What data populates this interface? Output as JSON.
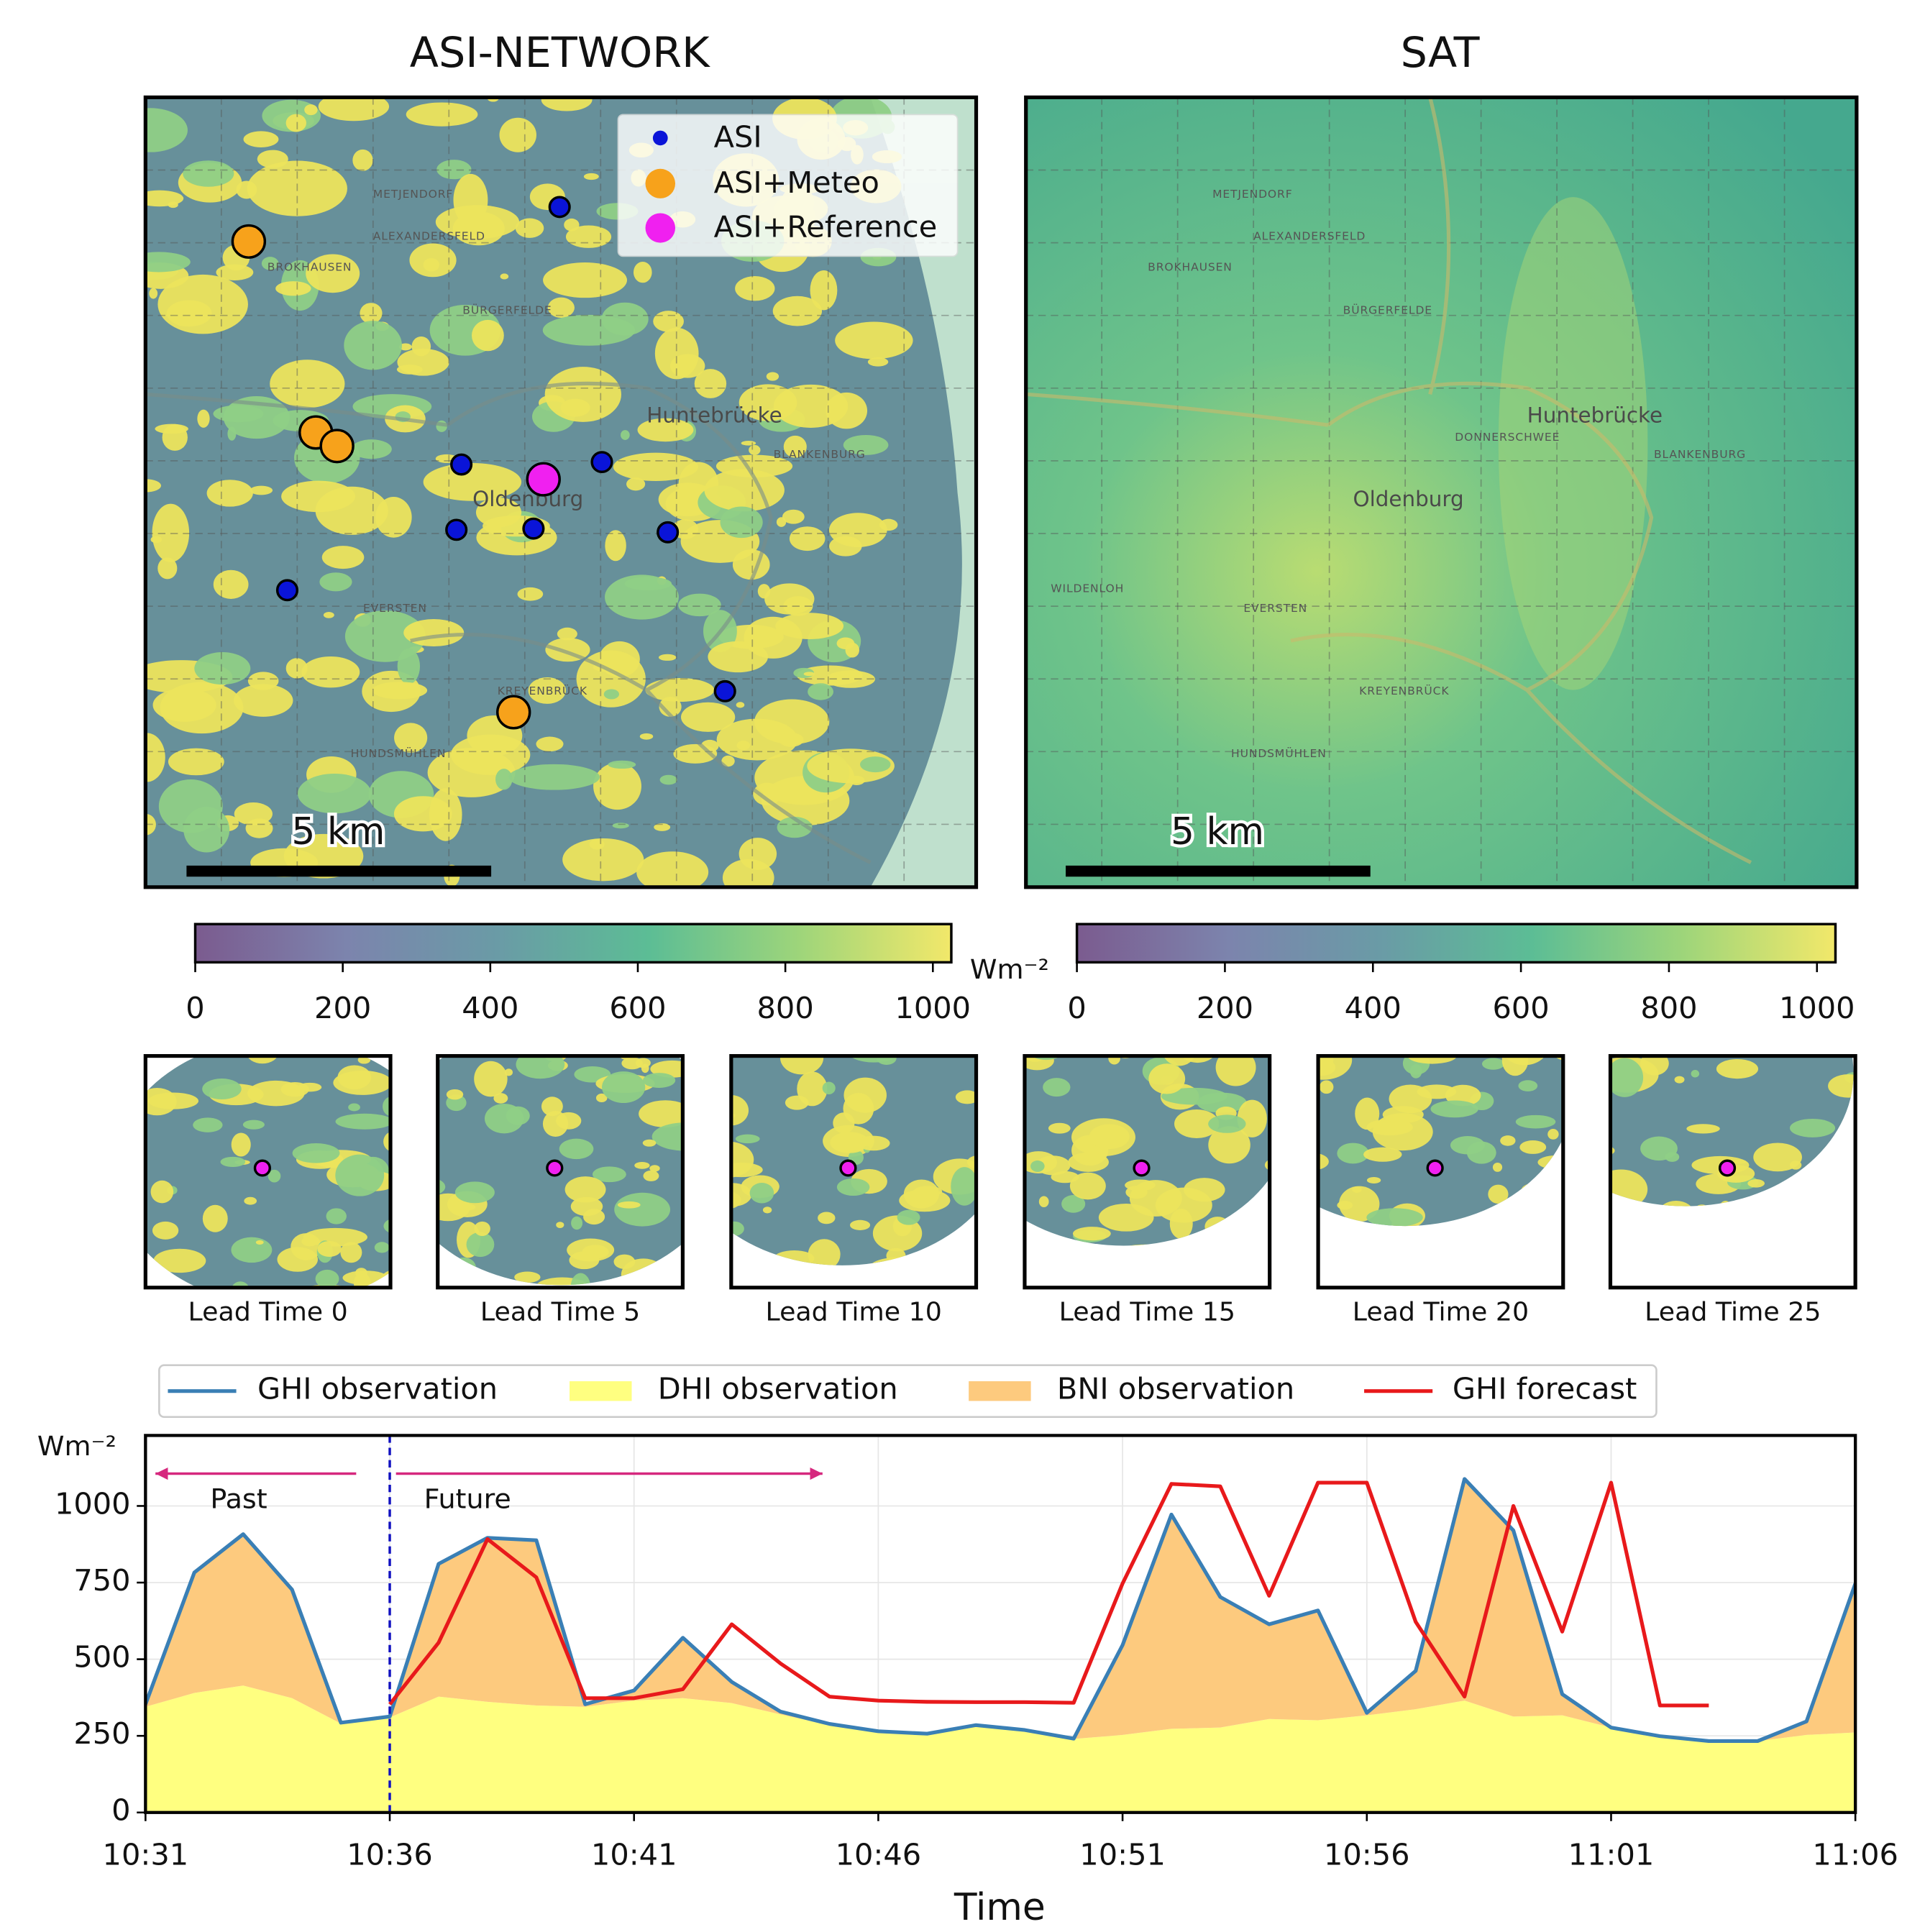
{
  "maps": [
    {
      "title": "ASI-NETWORK",
      "scale_label": "5 km",
      "legend": [
        "ASI",
        "ASI+Meteo",
        "ASI+Reference"
      ],
      "places": [
        "METJENDORF",
        "ALEXANDERSFELD",
        "BROKHAUSEN",
        "BÜRGERFELDE",
        "Oldenburg",
        "EVERSTEN",
        "Huntebrücke",
        "BLANKENBURG",
        "HUNDSMÜHLEN",
        "KREYENBRÜCK"
      ]
    },
    {
      "title": "SAT",
      "scale_label": "5 km",
      "places": [
        "METJENDORF",
        "ALEXANDERSFELD",
        "BROKHAUSEN",
        "BÜRGERFELDE",
        "Oldenburg",
        "EVERSTEN",
        "Huntebrücke",
        "BLANKENBURG",
        "HUNDSMÜHLEN",
        "KREYENBRÜCK",
        "DONNERSCHWEE",
        "WILDENLOH"
      ]
    }
  ],
  "colorbars": [
    {
      "clim": [
        0,
        1025
      ],
      "ticks": [
        0,
        200,
        400,
        600,
        800,
        1000
      ],
      "unit": "Wm⁻²"
    },
    {
      "clim": [
        0,
        1025
      ],
      "ticks": [
        0,
        200,
        400,
        600,
        800,
        1000
      ]
    }
  ],
  "thumbnails": [
    "Lead Time 0",
    "Lead Time 5",
    "Lead Time 10",
    "Lead Time 15",
    "Lead Time 20",
    "Lead Time 25"
  ],
  "chart_data": {
    "type": "line",
    "x": [
      "10:31",
      "10:32",
      "10:33",
      "10:34",
      "10:35",
      "10:36",
      "10:37",
      "10:38",
      "10:39",
      "10:40",
      "10:41",
      "10:42",
      "10:43",
      "10:44",
      "10:45",
      "10:46",
      "10:47",
      "10:48",
      "10:49",
      "10:50",
      "10:51",
      "10:52",
      "10:53",
      "10:54",
      "10:55",
      "10:56",
      "10:57",
      "10:58",
      "10:59",
      "11:00",
      "11:01",
      "11:02",
      "11:03",
      "11:04",
      "11:05",
      "11:06"
    ],
    "xlim": [
      "10:31",
      "11:06"
    ],
    "xticks": [
      "10:31",
      "10:36",
      "10:41",
      "10:46",
      "10:51",
      "10:56",
      "11:01",
      "11:06"
    ],
    "xlabel": "Time",
    "ylabel": "Wm⁻²",
    "ylim": [
      0,
      1230
    ],
    "yticks": [
      0,
      250,
      500,
      750,
      1000
    ],
    "grid": true,
    "now": "10:36",
    "annotations": [
      "Past",
      "Future"
    ],
    "series": [
      {
        "name": "GHI observation",
        "kind": "line",
        "color": "#3a7fb5",
        "values": [
          353,
          783,
          908,
          727,
          293,
          313,
          811,
          896,
          888,
          353,
          398,
          570,
          426,
          329,
          289,
          265,
          257,
          285,
          269,
          241,
          546,
          972,
          703,
          614,
          659,
          325,
          462,
          1088,
          920,
          386,
          277,
          249,
          233,
          233,
          297,
          747
        ]
      },
      {
        "name": "DHI observation",
        "kind": "area",
        "color": "#ffff80",
        "values": [
          345,
          390,
          414,
          373,
          290,
          310,
          378,
          361,
          349,
          345,
          365,
          373,
          357,
          320,
          285,
          262,
          255,
          280,
          265,
          240,
          253,
          273,
          277,
          305,
          301,
          317,
          337,
          365,
          313,
          317,
          277,
          249,
          233,
          233,
          253,
          261
        ]
      },
      {
        "name": "BNI observation",
        "kind": "stacked-area",
        "color": "#fdca7e",
        "values": [
          8,
          393,
          494,
          354,
          3,
          3,
          433,
          535,
          539,
          8,
          33,
          197,
          69,
          9,
          4,
          3,
          2,
          5,
          4,
          1,
          293,
          699,
          426,
          309,
          358,
          8,
          125,
          723,
          607,
          69,
          0,
          0,
          0,
          0,
          44,
          486
        ]
      },
      {
        "name": "GHI forecast",
        "kind": "line",
        "color": "#e8191b",
        "values": [
          null,
          null,
          null,
          null,
          null,
          353,
          554,
          892,
          767,
          373,
          373,
          402,
          614,
          486,
          378,
          365,
          361,
          360,
          360,
          358,
          747,
          1072,
          1064,
          707,
          1076,
          1076,
          622,
          378,
          1000,
          590,
          1076,
          349,
          349,
          null,
          null,
          null
        ]
      }
    ]
  }
}
